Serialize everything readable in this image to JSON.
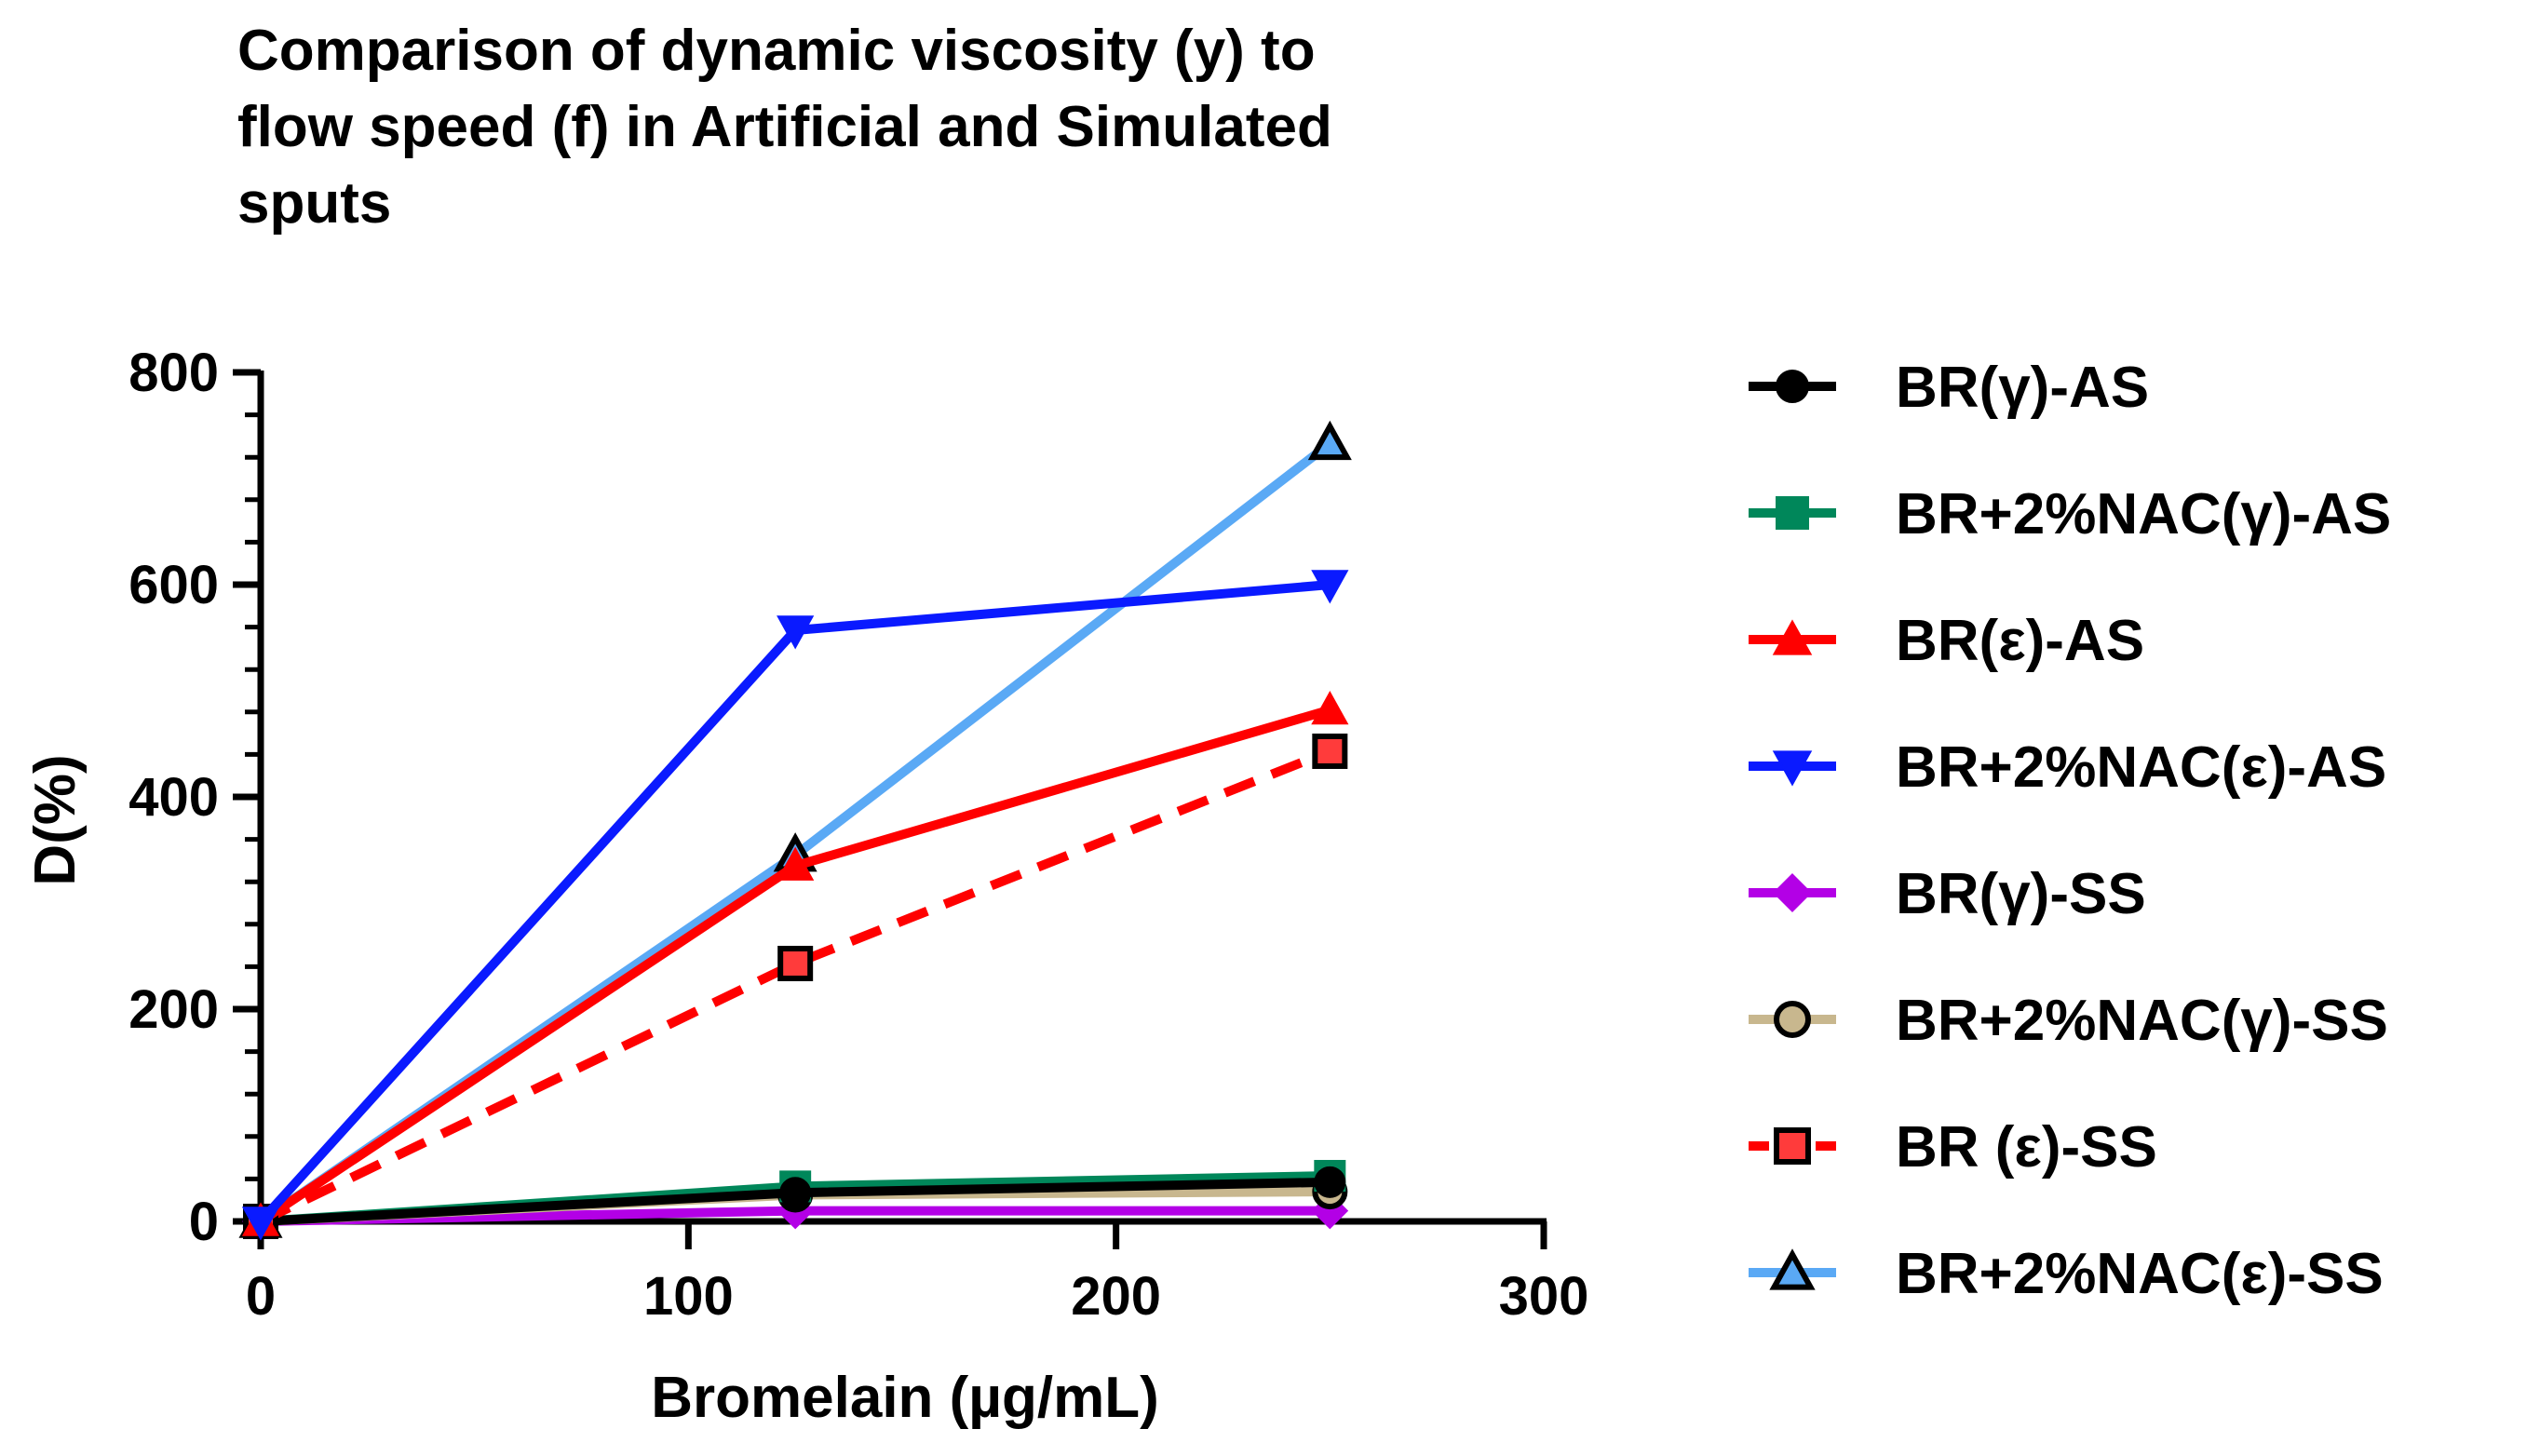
{
  "chart_data": {
    "type": "line",
    "title_lines": [
      "Comparison of dynamic viscosity (y) to",
      "flow speed (f) in Artificial and Simulated",
      "sputs"
    ],
    "xlabel": "Bromelain (µg/mL)",
    "ylabel": "D(%)",
    "xlim": [
      0,
      300
    ],
    "ylim": [
      0,
      800
    ],
    "x_ticks": [
      "0",
      "100",
      "200",
      "300"
    ],
    "y_ticks": [
      "0",
      "200",
      "400",
      "600",
      "800"
    ],
    "x": [
      0,
      125,
      250
    ],
    "legend_position": "right",
    "series": [
      {
        "name": "BR(γ)-AS",
        "values": [
          0,
          27,
          37
        ],
        "color": "#000000",
        "marker": "circle",
        "dash": false,
        "marker_fill": "#000000",
        "marker_stroke": "#000000"
      },
      {
        "name": "BR+2%NAC(γ)-AS",
        "values": [
          0,
          33,
          43
        ],
        "color": "#00875a",
        "marker": "square",
        "dash": false,
        "marker_fill": "#00875a",
        "marker_stroke": "#00875a"
      },
      {
        "name": "BR(ε)-AS",
        "values": [
          0,
          335,
          482
        ],
        "color": "#ff0000",
        "marker": "triangle",
        "dash": false,
        "marker_fill": "#ff0000",
        "marker_stroke": "#ff0000"
      },
      {
        "name": "BR+2%NAC(ε)-AS",
        "values": [
          0,
          557,
          600
        ],
        "color": "#0a1aff",
        "marker": "triangle-down",
        "dash": false,
        "marker_fill": "#0a1aff",
        "marker_stroke": "#0a1aff"
      },
      {
        "name": "BR(γ)-SS",
        "values": [
          0,
          10,
          10
        ],
        "color": "#b300e6",
        "marker": "diamond",
        "dash": false,
        "marker_fill": "#b300e6",
        "marker_stroke": "#b300e6"
      },
      {
        "name": "BR+2%NAC(γ)-SS",
        "values": [
          0,
          25,
          28
        ],
        "color": "#c8b78e",
        "marker": "circle",
        "dash": false,
        "marker_fill": "#c8b78e",
        "marker_stroke": "#000000"
      },
      {
        "name": "BR (ε)-SS",
        "values": [
          0,
          243,
          443
        ],
        "color": "#ff0000",
        "marker": "square",
        "dash": true,
        "marker_fill": "#ff3b3b",
        "marker_stroke": "#000000"
      },
      {
        "name": "BR+2%NAC(ε)-SS",
        "values": [
          0,
          345,
          733
        ],
        "color": "#5aa9f5",
        "marker": "triangle",
        "dash": false,
        "marker_fill": "#5aa9f5",
        "marker_stroke": "#000000"
      }
    ]
  }
}
